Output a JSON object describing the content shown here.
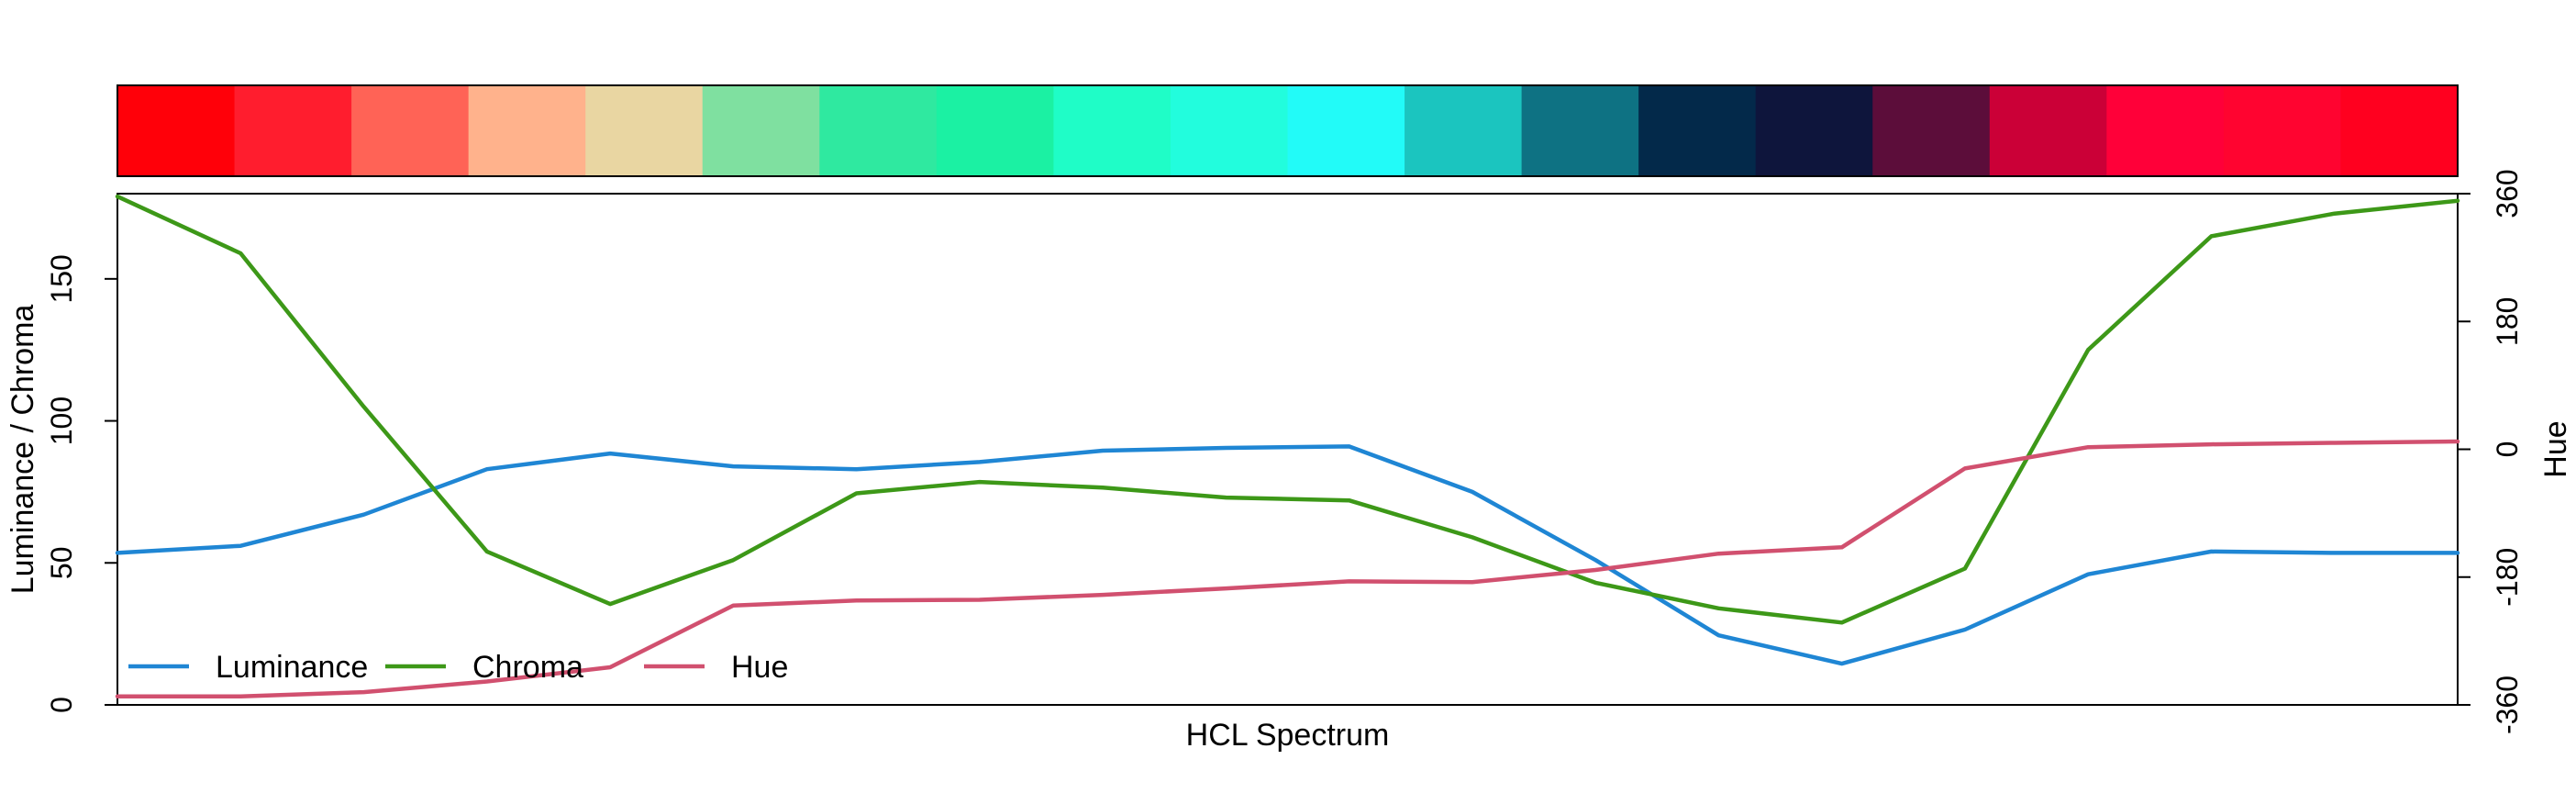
{
  "chart_data": {
    "type": "line",
    "title": "",
    "xlabel": "HCL Spectrum",
    "ylabel_left": "Luminance / Chroma",
    "ylabel_right": "Hue",
    "ylim_left": [
      0,
      180
    ],
    "ylim_right": [
      -360,
      360
    ],
    "yticks_left": [
      "0",
      "50",
      "100",
      "150"
    ],
    "yticks_left_values": [
      0,
      50,
      100,
      150
    ],
    "yticks_right": [
      "-360",
      "-180",
      "0",
      "180",
      "360"
    ],
    "yticks_right_values": [
      -360,
      -180,
      0,
      180,
      360
    ],
    "grid": false,
    "legend_position": "bottom-left",
    "palette": [
      "#FF0009",
      "#FF1D2E",
      "#FF6356",
      "#FFB28C",
      "#E9D6A2",
      "#7FE0A0",
      "#2FE9A0",
      "#1BF1A3",
      "#1FFDC7",
      "#22FDDD",
      "#22FBF8",
      "#1BC5BF",
      "#0E7283",
      "#03294A",
      "#0E153C",
      "#5C0D3A",
      "#CB0037",
      "#FF0039",
      "#FF0430",
      "#FF001F"
    ],
    "series": [
      {
        "name": "Luminance",
        "color": "#1F86D4",
        "axis": "left",
        "values": [
          53.5,
          56,
          67,
          83,
          88.5,
          84,
          83,
          85.5,
          89.5,
          90.5,
          91,
          75,
          51,
          24.5,
          14.5,
          26.5,
          46,
          54,
          53.5,
          53.5
        ]
      },
      {
        "name": "Chroma",
        "color": "#3D9818",
        "axis": "left",
        "values": [
          179,
          159,
          105,
          54,
          35.5,
          51,
          74.5,
          78.5,
          76.5,
          73,
          72,
          59,
          43,
          34,
          29,
          48,
          125,
          165,
          173,
          177.5
        ]
      },
      {
        "name": "Hue",
        "color": "#D1506F",
        "axis": "right",
        "values": [
          -348,
          -348,
          -342,
          -327,
          -307,
          -220,
          -213,
          -212,
          -205,
          -196,
          -186,
          -187,
          -170,
          -147,
          -138,
          -27,
          3,
          7,
          9,
          11
        ]
      }
    ]
  }
}
